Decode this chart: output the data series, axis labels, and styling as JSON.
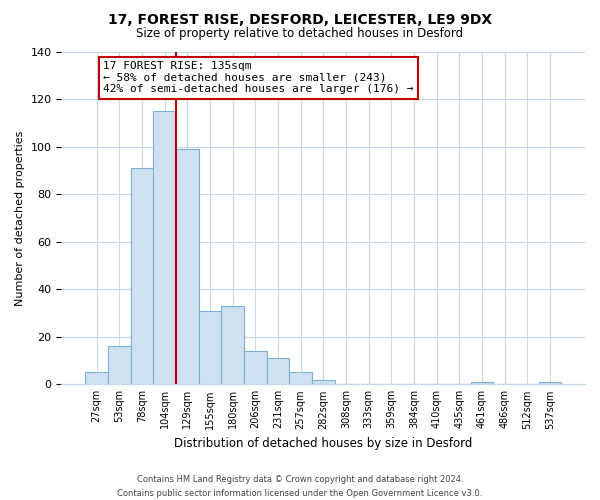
{
  "title": "17, FOREST RISE, DESFORD, LEICESTER, LE9 9DX",
  "subtitle": "Size of property relative to detached houses in Desford",
  "xlabel": "Distribution of detached houses by size in Desford",
  "ylabel": "Number of detached properties",
  "bar_labels": [
    "27sqm",
    "53sqm",
    "78sqm",
    "104sqm",
    "129sqm",
    "155sqm",
    "180sqm",
    "206sqm",
    "231sqm",
    "257sqm",
    "282sqm",
    "308sqm",
    "333sqm",
    "359sqm",
    "384sqm",
    "410sqm",
    "435sqm",
    "461sqm",
    "486sqm",
    "512sqm",
    "537sqm"
  ],
  "bar_values": [
    5,
    16,
    91,
    115,
    99,
    31,
    33,
    14,
    11,
    5,
    2,
    0,
    0,
    0,
    0,
    0,
    0,
    1,
    0,
    0,
    1
  ],
  "bar_color": "#cfe0f3",
  "bar_edge_color": "#7db0d5",
  "highlight_bar_index": 4,
  "vline_color": "#c00000",
  "ylim": [
    0,
    140
  ],
  "yticks": [
    0,
    20,
    40,
    60,
    80,
    100,
    120,
    140
  ],
  "annotation_title": "17 FOREST RISE: 135sqm",
  "annotation_line1": "← 58% of detached houses are smaller (243)",
  "annotation_line2": "42% of semi-detached houses are larger (176) →",
  "annotation_box_color": "#ffffff",
  "annotation_box_edge_color": "#c00000",
  "footnote1": "Contains HM Land Registry data © Crown copyright and database right 2024.",
  "footnote2": "Contains public sector information licensed under the Open Government Licence v3.0.",
  "background_color": "#ffffff",
  "grid_color": "#c8d8e8"
}
